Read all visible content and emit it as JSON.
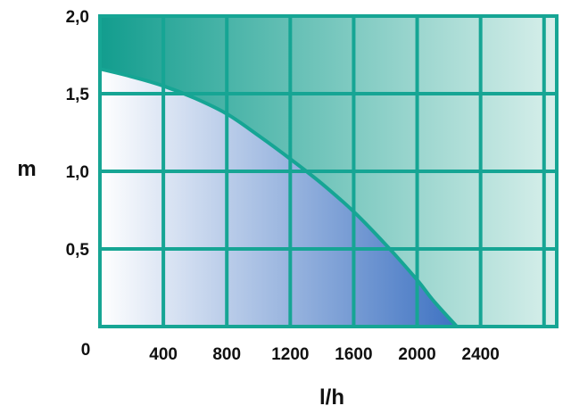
{
  "chart_data": {
    "type": "area",
    "xlabel": "l/h",
    "ylabel": "m",
    "xlim": [
      0,
      2880
    ],
    "ylim": [
      0,
      2.0
    ],
    "x_ticks": [
      {
        "value": 400,
        "label": "400"
      },
      {
        "value": 800,
        "label": "800"
      },
      {
        "value": 1200,
        "label": "1200"
      },
      {
        "value": 1600,
        "label": "1600"
      },
      {
        "value": 2000,
        "label": "2000"
      },
      {
        "value": 2400,
        "label": "2400"
      }
    ],
    "y_ticks": [
      {
        "value": 0,
        "label": "0"
      },
      {
        "value": 0.5,
        "label": "0,5"
      },
      {
        "value": 1.0,
        "label": "1,0"
      },
      {
        "value": 1.5,
        "label": "1,5"
      },
      {
        "value": 2.0,
        "label": "2,0"
      }
    ],
    "x_grid": [
      0,
      400,
      800,
      1200,
      1600,
      2000,
      2400,
      2800
    ],
    "y_grid": [
      0,
      0.5,
      1.0,
      1.5,
      2.0
    ],
    "grid": true,
    "series": [
      {
        "x": [
          0,
          200,
          400,
          600,
          800,
          1000,
          1200,
          1400,
          1600,
          1800,
          2000,
          2100,
          2250
        ],
        "y": [
          1.66,
          1.61,
          1.55,
          1.47,
          1.37,
          1.23,
          1.08,
          0.92,
          0.74,
          0.53,
          0.3,
          0.17,
          0.0
        ]
      }
    ],
    "colors": {
      "grid": "#16a594",
      "curve": "#16a594",
      "upper_left": "#129d8e",
      "upper_right": "#d8efeb",
      "lower_left": "#ffffff",
      "lower_right": "#3e72c2"
    }
  }
}
